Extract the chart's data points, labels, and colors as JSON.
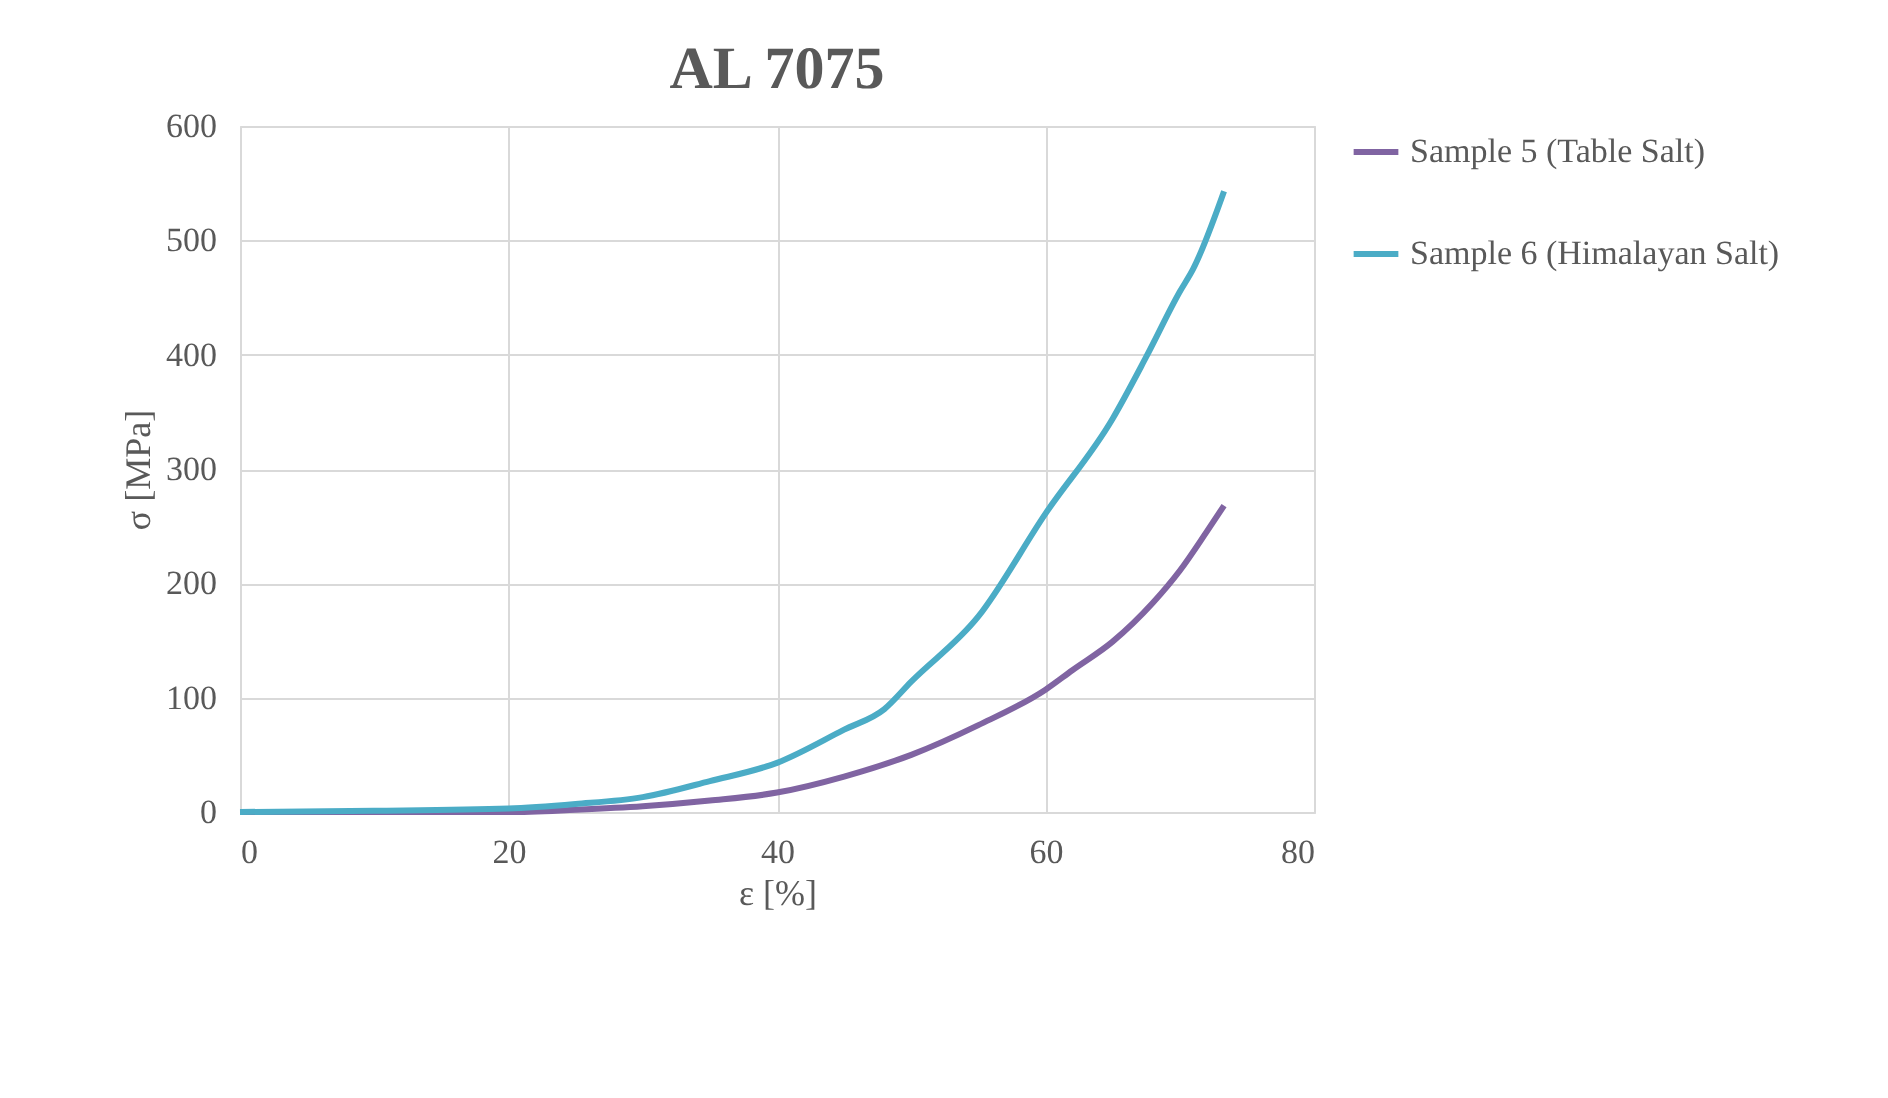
{
  "chart_data": {
    "type": "line",
    "title": "AL 7075",
    "xlabel": "ε [%]",
    "ylabel": "σ [MPa]",
    "xlim": [
      0,
      80
    ],
    "xticks": [
      0,
      20,
      40,
      60,
      80
    ],
    "ylim": [
      0,
      600
    ],
    "yticks": [
      0,
      100,
      200,
      300,
      400,
      500,
      600
    ],
    "grid": true,
    "legend": "right",
    "marker": "none",
    "line_style": "solid",
    "series": [
      {
        "name": "Sample 5 (Table Salt)",
        "color": "#8064a2",
        "x": [
          0,
          10,
          20,
          25,
          30,
          35,
          40,
          45,
          50,
          55,
          60,
          62,
          65,
          68,
          70,
          72,
          73.3
        ],
        "values": [
          0,
          0,
          0,
          2,
          5,
          10,
          17,
          31,
          50,
          76,
          107,
          124,
          149,
          183,
          211,
          245,
          268
        ]
      },
      {
        "name": "Sample 6 (Himalayan Salt)",
        "color": "#4bacc6",
        "x": [
          0,
          10,
          20,
          25,
          30,
          35,
          40,
          45,
          48,
          50,
          55,
          60,
          65,
          67.5,
          70,
          71,
          73.3
        ],
        "values": [
          0,
          1,
          3,
          7,
          13,
          27,
          43,
          72,
          90,
          114,
          171,
          261,
          344,
          398,
          455,
          475,
          543
        ]
      }
    ]
  }
}
